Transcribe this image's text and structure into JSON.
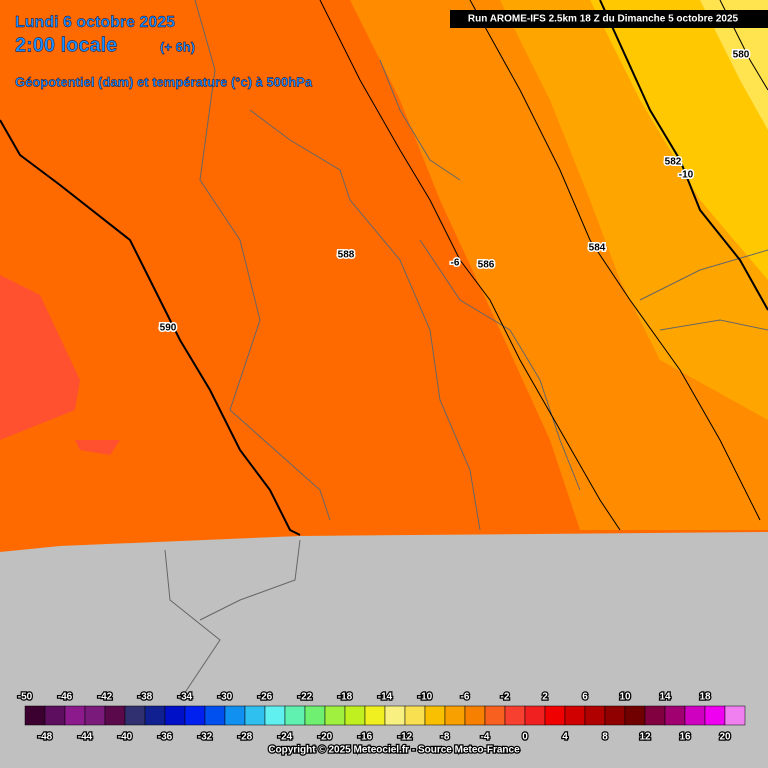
{
  "header": {
    "date": "Lundi 6 octobre 2025",
    "time": "2:00 locale",
    "lead": "(+ 6h)",
    "field": "Géopotentiel (dam) et température (°c) à 500hPa",
    "run": "Run AROME-IFS 2.5km 18 Z du Dimanche 5 octobre 2025"
  },
  "contour_labels": [
    {
      "text": "580"
    },
    {
      "text": "582"
    },
    {
      "text": "-10"
    },
    {
      "text": "584"
    },
    {
      "text": "588"
    },
    {
      "text": "-6"
    },
    {
      "text": "586"
    },
    {
      "text": "590"
    }
  ],
  "colorbar": {
    "ticks": [
      -50,
      -48,
      -46,
      -44,
      -42,
      -40,
      -38,
      -36,
      -34,
      -32,
      -30,
      -28,
      -26,
      -24,
      -22,
      -20,
      -18,
      -16,
      -14,
      -12,
      -10,
      -8,
      -6,
      -4,
      -2,
      0,
      2,
      4,
      6,
      8,
      10,
      12,
      14,
      16,
      18,
      20
    ],
    "colors": [
      "#3c0030",
      "#5e0e5e",
      "#8c1a8c",
      "#7a1a7a",
      "#5a0a4a",
      "#303070",
      "#102090",
      "#0010c8",
      "#0020f0",
      "#0050f0",
      "#1090f0",
      "#30c0f0",
      "#60f0f0",
      "#60f0b0",
      "#70f070",
      "#a0f040",
      "#c0f020",
      "#f0f020",
      "#f8f080",
      "#f8e050",
      "#f8c000",
      "#f8a000",
      "#f88000",
      "#f86020",
      "#f84030",
      "#f02020",
      "#f00000",
      "#d00000",
      "#b00000",
      "#900000",
      "#700000",
      "#800040",
      "#a00070",
      "#d000c0",
      "#f000f0",
      "#f080f0"
    ]
  },
  "footer": {
    "copyright": "Copyright © 2025 Meteociel.fr - Source Meteo-France"
  }
}
